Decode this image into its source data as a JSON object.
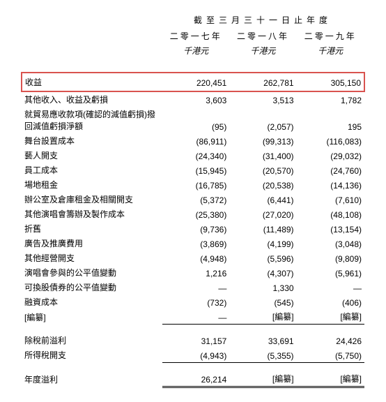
{
  "header": {
    "period_title": "截至三月三十一日止年度",
    "years": [
      "二零一七年",
      "二零一八年",
      "二零一九年"
    ],
    "unit": "千港元"
  },
  "rows": [
    {
      "label": "收益",
      "v": [
        "220,451",
        "262,781",
        "305,150"
      ],
      "highlight": true
    },
    {
      "label": "其他收入、收益及虧損",
      "v": [
        "3,603",
        "3,513",
        "1,782"
      ]
    },
    {
      "label": "就貿易應收款項(確認的減值虧損)撥回減值虧損淨額",
      "v": [
        "(95)",
        "(2,057)",
        "195"
      ]
    },
    {
      "label": "舞台設置成本",
      "v": [
        "(86,911)",
        "(99,313)",
        "(116,083)"
      ]
    },
    {
      "label": "藝人開支",
      "v": [
        "(24,340)",
        "(31,400)",
        "(29,032)"
      ]
    },
    {
      "label": "員工成本",
      "v": [
        "(15,945)",
        "(20,570)",
        "(24,760)"
      ]
    },
    {
      "label": "場地租金",
      "v": [
        "(16,785)",
        "(20,538)",
        "(14,136)"
      ]
    },
    {
      "label": "辦公室及倉庫租金及相關開支",
      "v": [
        "(5,372)",
        "(6,441)",
        "(7,610)"
      ]
    },
    {
      "label": "其他演唱會籌辦及製作成本",
      "v": [
        "(25,380)",
        "(27,020)",
        "(48,108)"
      ]
    },
    {
      "label": "折舊",
      "v": [
        "(9,736)",
        "(11,489)",
        "(13,154)"
      ]
    },
    {
      "label": "廣告及推廣費用",
      "v": [
        "(3,869)",
        "(4,199)",
        "(3,048)"
      ]
    },
    {
      "label": "其他經營開支",
      "v": [
        "(4,948)",
        "(5,596)",
        "(9,809)"
      ]
    },
    {
      "label": "演唱會參與的公平值變動",
      "v": [
        "1,216",
        "(4,307)",
        "(5,961)"
      ]
    },
    {
      "label": "可換股債券的公平值變動",
      "v": [
        "—",
        "1,330",
        "—"
      ]
    },
    {
      "label": "融資成本",
      "v": [
        "(732)",
        "(545)",
        "(406)"
      ]
    },
    {
      "label": "[編纂]",
      "v": [
        "—",
        "[編纂]",
        "[編纂]"
      ],
      "underline_after": true
    }
  ],
  "subtotal": [
    {
      "label": "除稅前溢利",
      "v": [
        "31,157",
        "33,691",
        "24,426"
      ]
    },
    {
      "label": "所得稅開支",
      "v": [
        "(4,943)",
        "(5,355)",
        "(5,750)"
      ],
      "underline_after": true
    }
  ],
  "total": {
    "label": "年度溢利",
    "v": [
      "26,214",
      "[編纂]",
      "[編纂]"
    ]
  },
  "colors": {
    "highlight_border": "#d9534f",
    "text": "#000000",
    "background": "#ffffff"
  }
}
